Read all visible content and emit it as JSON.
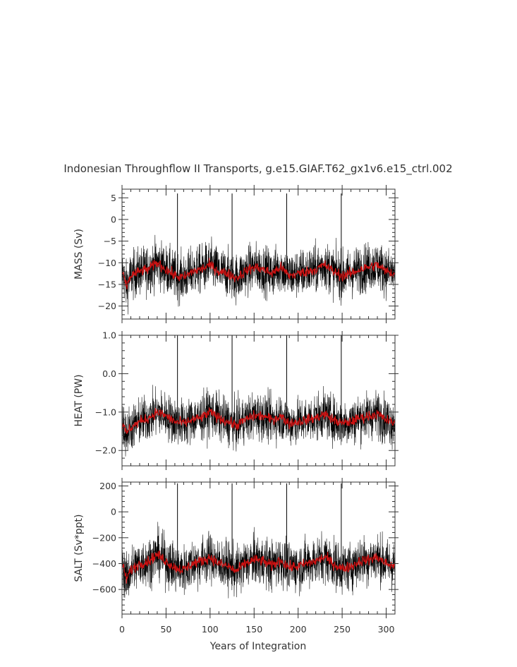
{
  "title": "Indonesian Throughflow II Transports, g.e15.GIAF.T62_gx1v6.e15_ctrl.002",
  "xlabel": "Years of Integration",
  "colors": {
    "raw": "#000000",
    "smoothed": "#cc1111",
    "axis": "#333333"
  },
  "chart_data": [
    {
      "type": "line",
      "panel": "mass",
      "ylabel": "MASS (Sv)",
      "xlim": [
        0,
        310
      ],
      "ylim": [
        -23,
        7
      ],
      "xticks": [
        0,
        50,
        100,
        150,
        200,
        250,
        300
      ],
      "yticks": [
        5,
        0,
        -5,
        -10,
        -15,
        -20
      ],
      "ytick_labels": [
        "5",
        "0",
        "−5",
        "−10",
        "−15",
        "−20"
      ],
      "series": [
        {
          "style": "raw",
          "approx_mean": -12,
          "approx_range": [
            -21,
            2
          ],
          "spikes_at": [
            63,
            125,
            187,
            249
          ],
          "spike_value": 6
        },
        {
          "style": "smoothed",
          "x": [
            0,
            5,
            10,
            20,
            30,
            40,
            50,
            60,
            70,
            80,
            90,
            100,
            110,
            120,
            130,
            140,
            150,
            160,
            170,
            180,
            190,
            200,
            210,
            220,
            230,
            240,
            250,
            260,
            270,
            280,
            290,
            300,
            310
          ],
          "values": [
            -12,
            -15.5,
            -13,
            -12,
            -11.5,
            -10,
            -11.5,
            -13,
            -13.5,
            -12,
            -11.5,
            -10.5,
            -12,
            -12.5,
            -13.5,
            -12,
            -11,
            -11.5,
            -12.5,
            -11,
            -13,
            -12.5,
            -12,
            -11.5,
            -10.5,
            -12,
            -13,
            -12.5,
            -11.5,
            -11,
            -10.5,
            -12,
            -12.5
          ]
        }
      ]
    },
    {
      "type": "line",
      "panel": "heat",
      "ylabel": "HEAT (PW)",
      "xlim": [
        0,
        310
      ],
      "ylim": [
        -2.4,
        1.0
      ],
      "xticks": [
        0,
        50,
        100,
        150,
        200,
        250,
        300
      ],
      "yticks": [
        1.0,
        0.0,
        -1.0,
        -2.0
      ],
      "ytick_labels": [
        "1.0",
        "0.0",
        "−1.0",
        "−2.0"
      ],
      "series": [
        {
          "style": "raw",
          "approx_mean": -1.2,
          "approx_range": [
            -2.2,
            0.3
          ],
          "spikes_at": [
            63,
            125,
            187,
            249
          ],
          "spike_value": 1.0
        },
        {
          "style": "smoothed",
          "x": [
            0,
            5,
            10,
            20,
            30,
            40,
            50,
            60,
            70,
            80,
            90,
            100,
            110,
            120,
            130,
            140,
            150,
            160,
            170,
            180,
            190,
            200,
            210,
            220,
            230,
            240,
            250,
            260,
            270,
            280,
            290,
            300,
            310
          ],
          "values": [
            -1.3,
            -1.55,
            -1.4,
            -1.25,
            -1.15,
            -1.0,
            -1.1,
            -1.25,
            -1.3,
            -1.2,
            -1.15,
            -1.0,
            -1.15,
            -1.25,
            -1.35,
            -1.2,
            -1.1,
            -1.1,
            -1.2,
            -1.1,
            -1.3,
            -1.25,
            -1.2,
            -1.15,
            -1.05,
            -1.2,
            -1.3,
            -1.25,
            -1.15,
            -1.1,
            -1.05,
            -1.2,
            -1.3
          ]
        }
      ]
    },
    {
      "type": "line",
      "panel": "salt",
      "ylabel": "SALT (Sv*ppt)",
      "xlim": [
        0,
        310
      ],
      "ylim": [
        -790,
        230
      ],
      "xticks": [
        0,
        50,
        100,
        150,
        200,
        250,
        300
      ],
      "yticks": [
        200,
        0,
        -200,
        -400,
        -600
      ],
      "ytick_labels": [
        "200",
        "0",
        "−200",
        "−400",
        "−600"
      ],
      "series": [
        {
          "style": "raw",
          "approx_mean": -410,
          "approx_range": [
            -720,
            60
          ],
          "spikes_at": [
            63,
            125,
            187,
            249
          ],
          "spike_value": 220
        },
        {
          "style": "smoothed",
          "x": [
            0,
            5,
            10,
            20,
            30,
            40,
            50,
            60,
            70,
            80,
            90,
            100,
            110,
            120,
            130,
            140,
            150,
            160,
            170,
            180,
            190,
            200,
            210,
            220,
            230,
            240,
            250,
            260,
            270,
            280,
            290,
            300,
            310
          ],
          "values": [
            -400,
            -520,
            -450,
            -400,
            -380,
            -330,
            -380,
            -430,
            -450,
            -400,
            -380,
            -350,
            -400,
            -420,
            -460,
            -400,
            -370,
            -380,
            -420,
            -370,
            -430,
            -420,
            -400,
            -380,
            -350,
            -400,
            -440,
            -420,
            -380,
            -370,
            -350,
            -400,
            -420
          ]
        }
      ]
    }
  ]
}
